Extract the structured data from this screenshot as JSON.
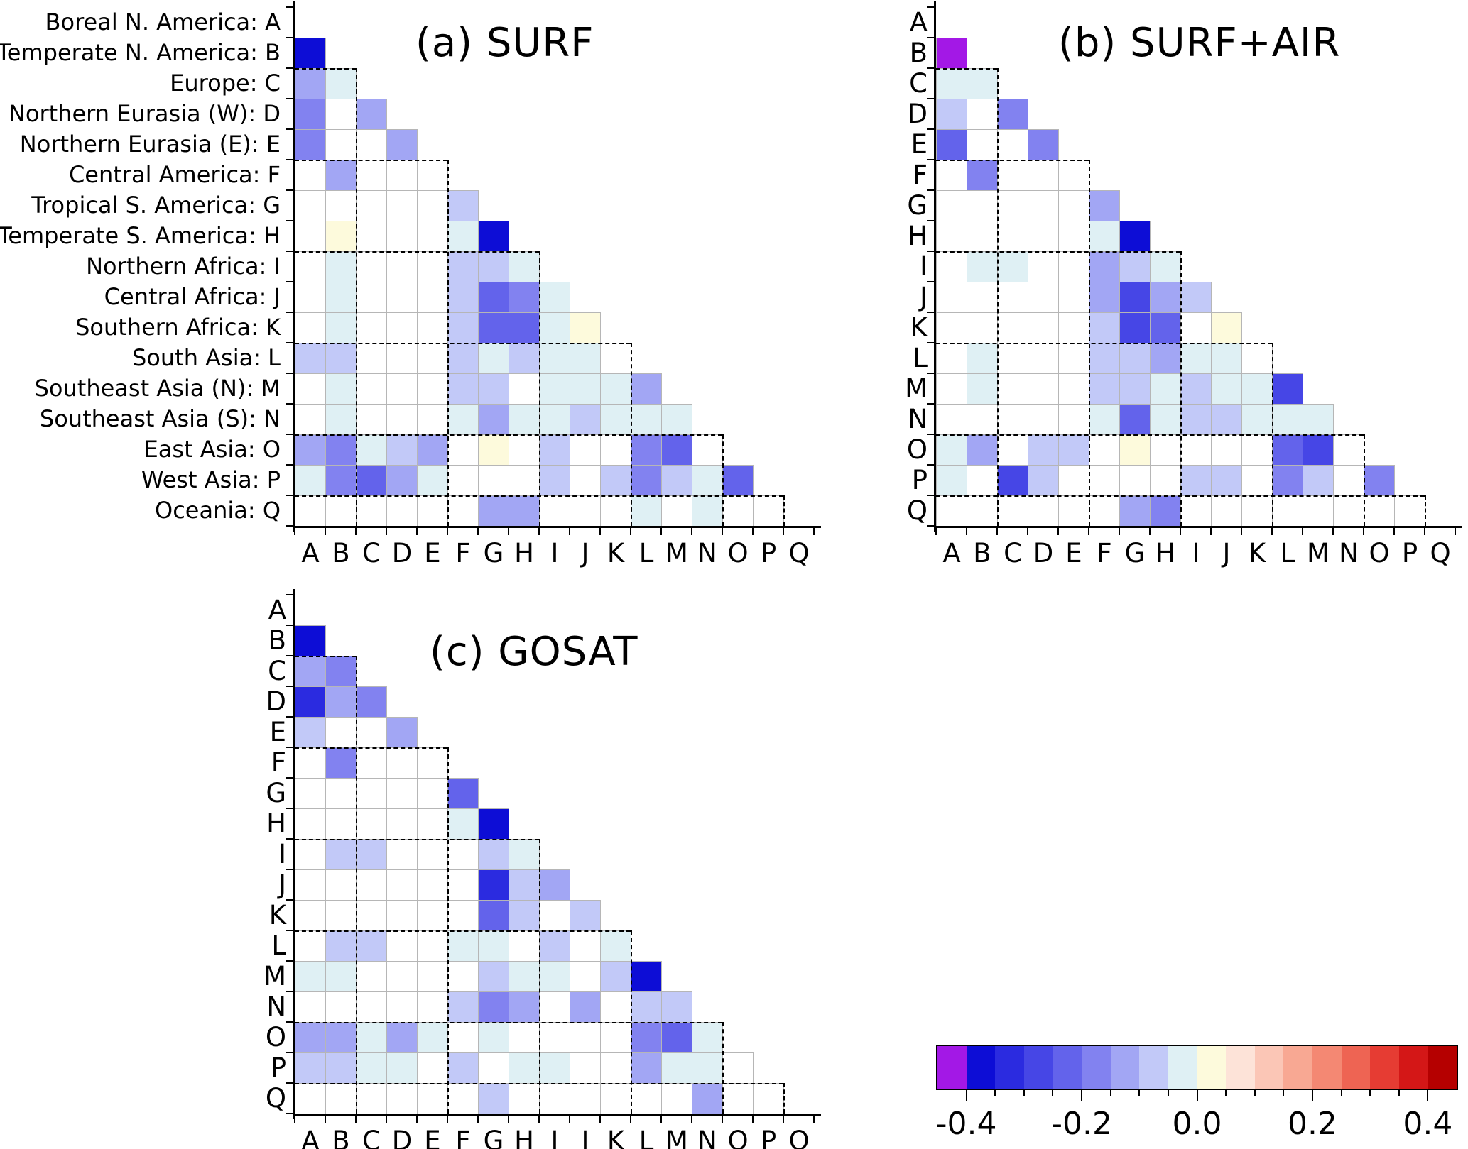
{
  "letters": [
    "A",
    "B",
    "C",
    "D",
    "E",
    "F",
    "G",
    "H",
    "I",
    "J",
    "K",
    "L",
    "M",
    "N",
    "O",
    "P",
    "Q"
  ],
  "regions": [
    {
      "name": "Boreal N. America",
      "letter": "A"
    },
    {
      "name": "Temperate N. America",
      "letter": "B"
    },
    {
      "name": "Europe",
      "letter": "C"
    },
    {
      "name": "Northern Eurasia (W)",
      "letter": "D"
    },
    {
      "name": "Northern Eurasia (E)",
      "letter": "E"
    },
    {
      "name": "Central America",
      "letter": "F"
    },
    {
      "name": "Tropical S. America",
      "letter": "G"
    },
    {
      "name": "Temperate S. America",
      "letter": "H"
    },
    {
      "name": "Northern Africa",
      "letter": "I"
    },
    {
      "name": "Central Africa",
      "letter": "J"
    },
    {
      "name": "Southern Africa",
      "letter": "K"
    },
    {
      "name": "South Asia",
      "letter": "L"
    },
    {
      "name": "Southeast Asia (N)",
      "letter": "M"
    },
    {
      "name": "Southeast Asia (S)",
      "letter": "N"
    },
    {
      "name": "East Asia",
      "letter": "O"
    },
    {
      "name": "West Asia",
      "letter": "P"
    },
    {
      "name": "Oceania",
      "letter": "Q"
    }
  ],
  "group_boundaries": [
    2,
    5,
    8,
    11,
    14,
    16
  ],
  "chart_data": [
    {
      "type": "heatmap",
      "id": "a",
      "title": "(a) SURF",
      "triangle": "lower",
      "rows": [
        "A",
        "B",
        "C",
        "D",
        "E",
        "F",
        "G",
        "H",
        "I",
        "J",
        "K",
        "L",
        "M",
        "N",
        "O",
        "P",
        "Q"
      ],
      "cols": [
        "A",
        "B",
        "C",
        "D",
        "E",
        "F",
        "G",
        "H",
        "I",
        "J",
        "K",
        "L",
        "M",
        "N",
        "O",
        "P",
        "Q"
      ],
      "value_range": [
        -0.45,
        0.45
      ],
      "values": {
        "B": [
          -0.38
        ],
        "C": [
          -0.15,
          -0.05
        ],
        "D": [
          -0.18,
          0,
          -0.15
        ],
        "E": [
          -0.2,
          0,
          0,
          -0.15
        ],
        "F": [
          0,
          -0.15,
          0,
          0,
          0
        ],
        "G": [
          0,
          0,
          0,
          0,
          0,
          -0.1
        ],
        "H": [
          0,
          0.03,
          0,
          0,
          0,
          -0.05,
          -0.37
        ],
        "I": [
          0,
          -0.03,
          0,
          0,
          0,
          -0.1,
          -0.1,
          -0.05
        ],
        "J": [
          0,
          -0.03,
          0,
          0,
          0,
          -0.1,
          -0.25,
          -0.2,
          -0.05
        ],
        "K": [
          0,
          -0.03,
          0,
          0,
          0,
          -0.1,
          -0.25,
          -0.22,
          -0.03,
          0.03
        ],
        "L": [
          -0.08,
          -0.08,
          0,
          0,
          0,
          -0.1,
          -0.03,
          -0.1,
          -0.05,
          -0.05,
          0
        ],
        "M": [
          0,
          -0.03,
          0,
          0,
          0,
          -0.08,
          -0.08,
          0,
          -0.05,
          -0.03,
          -0.05,
          -0.15
        ],
        "N": [
          0,
          -0.03,
          0,
          0,
          0,
          -0.03,
          -0.15,
          -0.03,
          -0.05,
          -0.08,
          -0.03,
          -0.05,
          -0.05
        ],
        "O": [
          -0.15,
          -0.18,
          -0.05,
          -0.1,
          -0.12,
          0,
          0.03,
          0,
          -0.08,
          0,
          0,
          -0.2,
          -0.23,
          0
        ],
        "P": [
          -0.05,
          -0.2,
          -0.25,
          -0.15,
          -0.05,
          0,
          0,
          0,
          -0.1,
          0,
          -0.08,
          -0.2,
          -0.1,
          -0.05,
          -0.25
        ],
        "Q": [
          0,
          0,
          0,
          0,
          0,
          0,
          -0.12,
          -0.15,
          0,
          0,
          0,
          -0.05,
          0,
          -0.05,
          0,
          0
        ]
      }
    },
    {
      "type": "heatmap",
      "id": "b",
      "title": "(b) SURF+AIR",
      "triangle": "lower",
      "rows": [
        "A",
        "B",
        "C",
        "D",
        "E",
        "F",
        "G",
        "H",
        "I",
        "J",
        "K",
        "L",
        "M",
        "N",
        "O",
        "P",
        "Q"
      ],
      "cols": [
        "A",
        "B",
        "C",
        "D",
        "E",
        "F",
        "G",
        "H",
        "I",
        "J",
        "K",
        "L",
        "M",
        "N",
        "O",
        "P",
        "Q"
      ],
      "value_range": [
        -0.45,
        0.45
      ],
      "values": {
        "B": [
          -0.45
        ],
        "C": [
          -0.05,
          -0.05
        ],
        "D": [
          -0.1,
          0,
          -0.2
        ],
        "E": [
          -0.25,
          0,
          0,
          -0.2
        ],
        "F": [
          0,
          -0.18,
          0,
          0,
          0
        ],
        "G": [
          0,
          0,
          0,
          0,
          0,
          -0.15
        ],
        "H": [
          0,
          0,
          0,
          0,
          0,
          -0.05,
          -0.4
        ],
        "I": [
          0,
          -0.05,
          -0.05,
          0,
          0,
          -0.12,
          -0.1,
          -0.05
        ],
        "J": [
          0,
          0,
          0,
          0,
          0,
          -0.12,
          -0.28,
          -0.15,
          -0.08
        ],
        "K": [
          0,
          0,
          0,
          0,
          0,
          -0.1,
          -0.28,
          -0.25,
          0,
          0.03
        ],
        "L": [
          0,
          -0.05,
          0,
          0,
          0,
          -0.1,
          -0.08,
          -0.15,
          -0.05,
          -0.05,
          0
        ],
        "M": [
          0,
          -0.05,
          0,
          0,
          0,
          -0.08,
          -0.1,
          -0.05,
          -0.08,
          -0.05,
          -0.05,
          -0.28
        ],
        "N": [
          0,
          0,
          0,
          0,
          0,
          -0.05,
          -0.25,
          -0.05,
          -0.08,
          -0.08,
          -0.05,
          -0.05,
          -0.05
        ],
        "O": [
          -0.05,
          -0.12,
          0,
          -0.1,
          -0.1,
          0,
          0.03,
          0,
          0,
          0,
          0,
          -0.22,
          -0.3,
          0
        ],
        "P": [
          -0.05,
          0,
          -0.28,
          -0.1,
          0,
          0,
          0,
          0,
          -0.1,
          -0.1,
          0,
          -0.2,
          -0.1,
          0,
          -0.2
        ],
        "Q": [
          0,
          0,
          0,
          0,
          0,
          0,
          -0.12,
          -0.2,
          0,
          0,
          0,
          0,
          0,
          0,
          0,
          0
        ]
      }
    },
    {
      "type": "heatmap",
      "id": "c",
      "title": "(c) GOSAT",
      "triangle": "lower",
      "rows": [
        "A",
        "B",
        "C",
        "D",
        "E",
        "F",
        "G",
        "H",
        "I",
        "J",
        "K",
        "L",
        "M",
        "N",
        "O",
        "P",
        "Q"
      ],
      "cols": [
        "A",
        "B",
        "C",
        "D",
        "E",
        "F",
        "G",
        "H",
        "I",
        "J",
        "K",
        "L",
        "M",
        "N",
        "O",
        "P",
        "Q"
      ],
      "value_range": [
        -0.45,
        0.45
      ],
      "values": {
        "B": [
          -0.4
        ],
        "C": [
          -0.15,
          -0.2
        ],
        "D": [
          -0.35,
          -0.15,
          -0.18
        ],
        "E": [
          -0.1,
          0,
          0,
          -0.15
        ],
        "F": [
          0,
          -0.2,
          0,
          0,
          0
        ],
        "G": [
          0,
          0,
          0,
          0,
          0,
          -0.25
        ],
        "H": [
          0,
          0,
          0,
          0,
          0,
          -0.05,
          -0.4
        ],
        "I": [
          0,
          -0.1,
          -0.1,
          0,
          0,
          0,
          -0.08,
          -0.05
        ],
        "J": [
          0,
          0,
          0,
          0,
          0,
          0,
          -0.35,
          -0.08,
          -0.15
        ],
        "K": [
          0,
          0,
          0,
          0,
          0,
          0,
          -0.25,
          -0.1,
          0,
          -0.08
        ],
        "L": [
          0,
          -0.08,
          -0.1,
          0,
          0,
          -0.05,
          -0.05,
          0,
          -0.08,
          0,
          -0.05
        ],
        "M": [
          -0.05,
          -0.05,
          0,
          0,
          0,
          0,
          -0.08,
          -0.05,
          -0.05,
          0,
          -0.08,
          -0.4
        ],
        "N": [
          0,
          0,
          0,
          0,
          0,
          -0.1,
          -0.2,
          -0.15,
          0,
          -0.12,
          0,
          -0.1,
          -0.1
        ],
        "O": [
          -0.15,
          -0.15,
          -0.05,
          -0.15,
          -0.05,
          0,
          -0.05,
          0,
          0,
          0,
          0,
          -0.2,
          -0.22,
          -0.05
        ],
        "P": [
          -0.08,
          -0.08,
          -0.05,
          -0.05,
          0,
          -0.08,
          0,
          -0.05,
          -0.05,
          0,
          0,
          -0.15,
          -0.05,
          -0.05,
          0
        ],
        "Q": [
          0,
          0,
          0,
          0,
          0,
          0,
          -0.1,
          0,
          0,
          0,
          0,
          0,
          0,
          -0.15,
          0,
          0
        ]
      }
    }
  ],
  "colorbar": {
    "min": -0.45,
    "max": 0.45,
    "step": 0.05,
    "palette": [
      "#a318e6",
      "#0d0dd6",
      "#2b2be0",
      "#4646e6",
      "#6363eb",
      "#8282f0",
      "#a2a6f4",
      "#c2c9f8",
      "#dff0f4",
      "#fdfadc",
      "#fde3d8",
      "#fbc6b6",
      "#f8a893",
      "#f48873",
      "#ee6453",
      "#e63c33",
      "#d41717",
      "#b50000"
    ],
    "zero_color": "#ffffff",
    "tick_labels": [
      "-0.4",
      "-0.2",
      "0.0",
      "0.2",
      "0.4"
    ],
    "tick_values": [
      -0.4,
      -0.2,
      0.0,
      0.2,
      0.4
    ]
  }
}
